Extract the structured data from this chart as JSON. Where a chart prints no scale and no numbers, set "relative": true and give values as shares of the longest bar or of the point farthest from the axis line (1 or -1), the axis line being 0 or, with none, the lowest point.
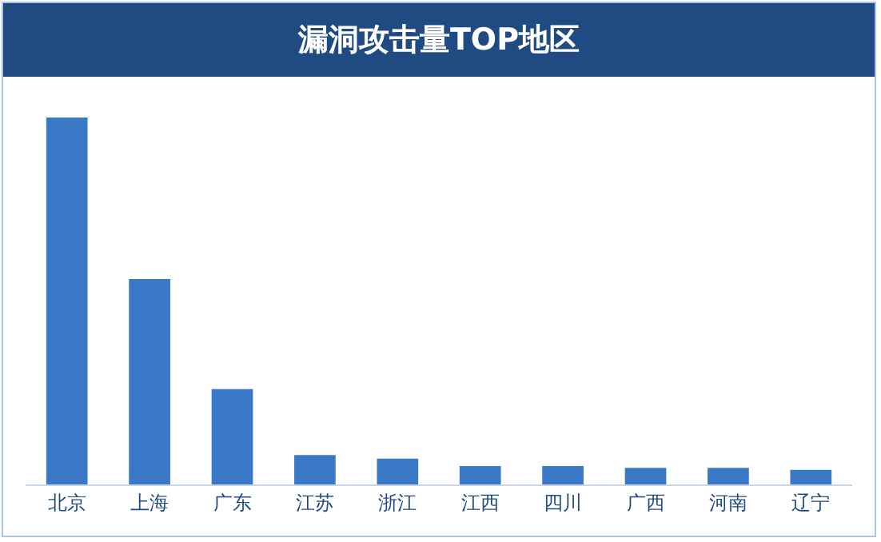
{
  "chart_data": {
    "type": "bar",
    "title": "漏洞攻击量TOP地区",
    "relative": true,
    "categories": [
      "北京",
      "上海",
      "广东",
      "江苏",
      "浙江",
      "江西",
      "四川",
      "广西",
      "河南",
      "辽宁"
    ],
    "values": [
      1,
      0.56,
      0.26,
      0.08,
      0.07,
      0.05,
      0.05,
      0.045,
      0.045,
      0.04
    ],
    "color": "#3a78c8"
  }
}
